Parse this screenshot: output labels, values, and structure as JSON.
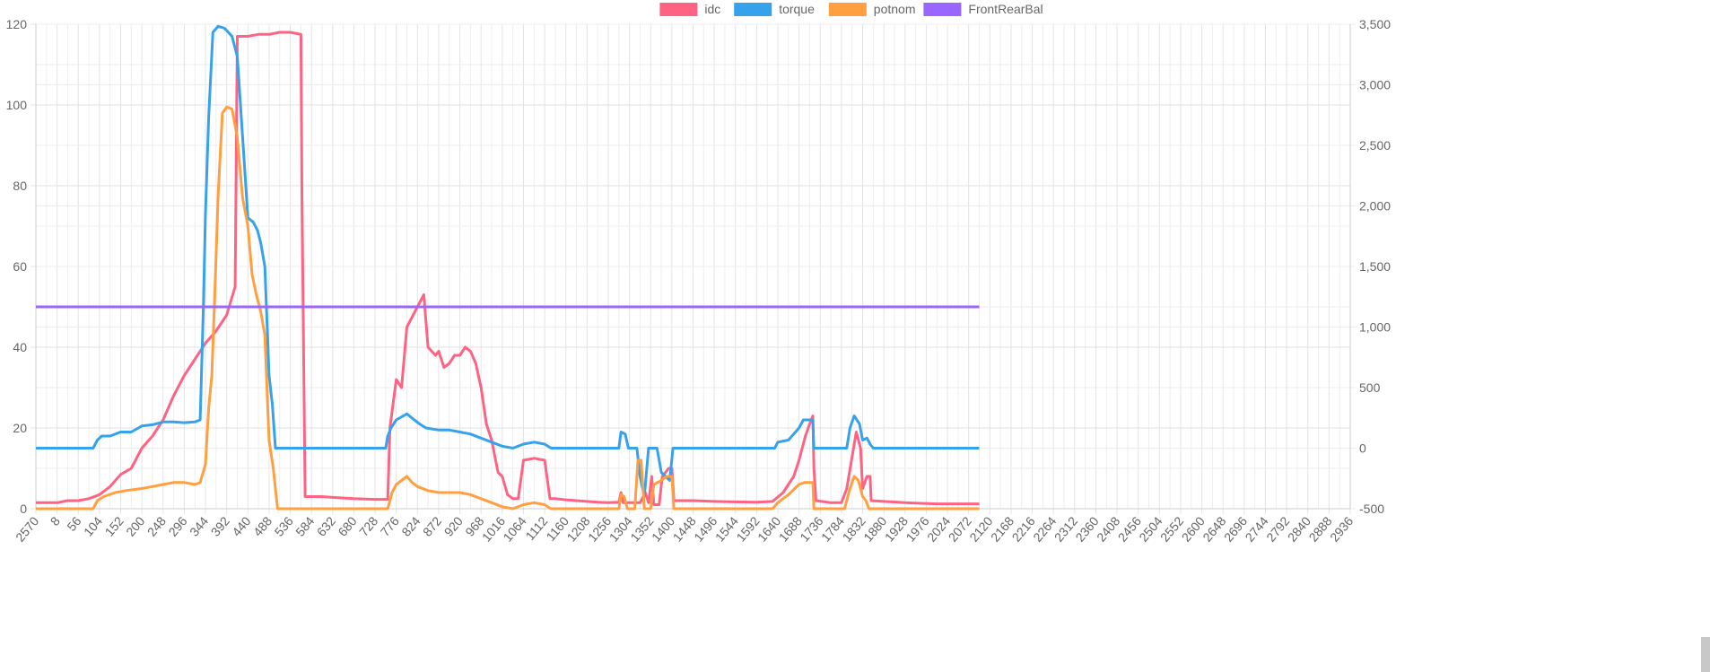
{
  "chart_data": {
    "type": "line",
    "title": "",
    "xlabel": "",
    "ylabel": "",
    "x_tick_labels": [
      "2570",
      "8",
      "56",
      "104",
      "152",
      "200",
      "248",
      "296",
      "344",
      "392",
      "440",
      "488",
      "536",
      "584",
      "632",
      "680",
      "728",
      "776",
      "824",
      "872",
      "920",
      "968",
      "1016",
      "1064",
      "1112",
      "1160",
      "1208",
      "1256",
      "1304",
      "1352",
      "1400",
      "1448",
      "1496",
      "1544",
      "1592",
      "1640",
      "1688",
      "1736",
      "1784",
      "1832",
      "1880",
      "1928",
      "1976",
      "2024",
      "2072",
      "2120",
      "2168",
      "2216",
      "2264",
      "2312",
      "2360",
      "2408",
      "2456",
      "2504",
      "2552",
      "2600",
      "2648",
      "2696",
      "2744",
      "2792",
      "2840",
      "2888",
      "2936"
    ],
    "y_left": {
      "min": 0,
      "max": 120,
      "ticks": [
        0,
        20,
        40,
        60,
        80,
        100,
        120
      ],
      "labels": [
        "0",
        "20",
        "40",
        "60",
        "80",
        "100",
        "120"
      ]
    },
    "y_right": {
      "min": -500,
      "max": 3500,
      "ticks": [
        -500,
        0,
        500,
        1000,
        1500,
        2000,
        2500,
        3000,
        3500
      ],
      "labels": [
        "-500",
        "0",
        "500",
        "1,000",
        "1,500",
        "2,000",
        "2,500",
        "3,000",
        "3,500"
      ]
    },
    "grid": true,
    "legend_position": "top",
    "series": [
      {
        "name": "idc",
        "color": "#ff6384",
        "axis": "left",
        "points": [
          [
            0,
            1.5
          ],
          [
            2,
            1.5
          ],
          [
            3,
            2
          ],
          [
            4,
            2
          ],
          [
            5,
            2.5
          ],
          [
            6,
            3.5
          ],
          [
            7,
            5.5
          ],
          [
            8,
            8.5
          ],
          [
            9,
            10
          ],
          [
            10,
            15
          ],
          [
            11,
            18
          ],
          [
            12,
            22
          ],
          [
            13,
            28
          ],
          [
            14,
            33
          ],
          [
            15,
            37
          ],
          [
            16,
            41
          ],
          [
            17,
            44
          ],
          [
            18,
            48
          ],
          [
            18.8,
            55
          ],
          [
            19,
            117
          ],
          [
            20,
            117
          ],
          [
            21,
            117.5
          ],
          [
            22,
            117.5
          ],
          [
            23,
            118
          ],
          [
            24,
            118
          ],
          [
            25,
            117.5
          ],
          [
            25.1,
            79
          ],
          [
            25.4,
            3
          ],
          [
            27,
            3
          ],
          [
            28,
            2.8
          ],
          [
            30,
            2.5
          ],
          [
            32,
            2.3
          ],
          [
            33.2,
            2.3
          ],
          [
            33.4,
            20
          ],
          [
            34,
            32
          ],
          [
            34.5,
            30
          ],
          [
            35,
            45
          ],
          [
            36,
            50
          ],
          [
            36.6,
            53
          ],
          [
            37,
            40
          ],
          [
            37.7,
            38
          ],
          [
            38,
            39
          ],
          [
            38.5,
            35
          ],
          [
            39,
            36
          ],
          [
            39.5,
            38
          ],
          [
            40,
            38
          ],
          [
            40.5,
            40
          ],
          [
            41,
            39
          ],
          [
            41.5,
            36
          ],
          [
            42,
            30
          ],
          [
            42.5,
            21
          ],
          [
            43,
            17
          ],
          [
            43.6,
            9
          ],
          [
            44,
            8
          ],
          [
            44.5,
            3.5
          ],
          [
            45,
            2.5
          ],
          [
            45.5,
            2.5
          ],
          [
            46,
            12
          ],
          [
            47,
            12.5
          ],
          [
            48,
            12
          ],
          [
            48.5,
            2.5
          ],
          [
            49,
            2.5
          ],
          [
            50,
            2.2
          ],
          [
            51,
            2
          ],
          [
            52,
            1.8
          ],
          [
            53,
            1.6
          ],
          [
            54,
            1.5
          ],
          [
            55,
            1.6
          ],
          [
            55.2,
            4
          ],
          [
            55.4,
            1.5
          ],
          [
            57,
            1.5
          ],
          [
            57.5,
            4
          ],
          [
            57.8,
            1.5
          ],
          [
            58.1,
            8
          ],
          [
            58.3,
            1
          ],
          [
            58.8,
            1
          ],
          [
            59.1,
            8
          ],
          [
            59.4,
            9
          ],
          [
            59.7,
            10
          ],
          [
            60,
            10
          ],
          [
            60.2,
            2
          ],
          [
            62,
            2
          ],
          [
            64,
            1.8
          ],
          [
            66,
            1.7
          ],
          [
            68,
            1.6
          ],
          [
            69.5,
            1.8
          ],
          [
            70.5,
            4
          ],
          [
            71.5,
            8
          ],
          [
            72,
            12
          ],
          [
            72.6,
            18
          ],
          [
            73,
            21
          ],
          [
            73.3,
            23
          ],
          [
            73.4,
            10
          ],
          [
            73.6,
            2
          ],
          [
            75,
            1.5
          ],
          [
            76,
            1.5
          ],
          [
            76.5,
            5
          ],
          [
            77.4,
            19
          ],
          [
            77.8,
            15
          ],
          [
            78,
            5
          ],
          [
            78.4,
            8
          ],
          [
            78.7,
            8
          ],
          [
            78.8,
            2
          ],
          [
            80,
            1.8
          ],
          [
            82,
            1.5
          ],
          [
            85,
            1.2
          ],
          [
            89,
            1.2
          ]
        ]
      },
      {
        "name": "torque",
        "color": "#36a2eb",
        "axis": "left",
        "points": [
          [
            0,
            15
          ],
          [
            5.4,
            15
          ],
          [
            5.8,
            17
          ],
          [
            6.2,
            18
          ],
          [
            7,
            18
          ],
          [
            8,
            19
          ],
          [
            9,
            19
          ],
          [
            10,
            20.5
          ],
          [
            11,
            20.8
          ],
          [
            12,
            21.5
          ],
          [
            13,
            21.5
          ],
          [
            14,
            21.3
          ],
          [
            15,
            21.5
          ],
          [
            15.5,
            22
          ],
          [
            15.8,
            50
          ],
          [
            16,
            73
          ],
          [
            16.3,
            97
          ],
          [
            16.7,
            118
          ],
          [
            17.2,
            119.5
          ],
          [
            17.8,
            119
          ],
          [
            18.5,
            117
          ],
          [
            19,
            112
          ],
          [
            19.6,
            88
          ],
          [
            20,
            72
          ],
          [
            20.5,
            71
          ],
          [
            20.9,
            69
          ],
          [
            21.2,
            66
          ],
          [
            21.6,
            60
          ],
          [
            22,
            33
          ],
          [
            22.3,
            26
          ],
          [
            22.6,
            15
          ],
          [
            33,
            15
          ],
          [
            33.2,
            18
          ],
          [
            33.5,
            20
          ],
          [
            34,
            22
          ],
          [
            35,
            23.5
          ],
          [
            35.7,
            22
          ],
          [
            36.2,
            21
          ],
          [
            36.8,
            20
          ],
          [
            38,
            19.5
          ],
          [
            39,
            19.5
          ],
          [
            40,
            19
          ],
          [
            41,
            18.5
          ],
          [
            42,
            17.5
          ],
          [
            43,
            16.5
          ],
          [
            44,
            15.5
          ],
          [
            45,
            15
          ],
          [
            46,
            16
          ],
          [
            47,
            16.5
          ],
          [
            48,
            16
          ],
          [
            48.6,
            15
          ],
          [
            55,
            15
          ],
          [
            55.2,
            19
          ],
          [
            55.6,
            18.5
          ],
          [
            55.9,
            15
          ],
          [
            56.7,
            15
          ],
          [
            57,
            8
          ],
          [
            57.4,
            3
          ],
          [
            57.8,
            15
          ],
          [
            58.6,
            15
          ],
          [
            59,
            9
          ],
          [
            59.4,
            8
          ],
          [
            59.8,
            7
          ],
          [
            60.1,
            15
          ],
          [
            69.7,
            15
          ],
          [
            70,
            16.5
          ],
          [
            71,
            17
          ],
          [
            72,
            20
          ],
          [
            72.4,
            22
          ],
          [
            73.3,
            22
          ],
          [
            73.4,
            15
          ],
          [
            76.5,
            15
          ],
          [
            76.8,
            20
          ],
          [
            77.2,
            23
          ],
          [
            77.7,
            21
          ],
          [
            78,
            17
          ],
          [
            78.4,
            17.5
          ],
          [
            78.7,
            16
          ],
          [
            79,
            15
          ],
          [
            89,
            15
          ]
        ]
      },
      {
        "name": "potnom",
        "color": "#ff9f40",
        "axis": "left",
        "points": [
          [
            0,
            0
          ],
          [
            5.4,
            0
          ],
          [
            5.8,
            2
          ],
          [
            6.4,
            3
          ],
          [
            7.5,
            4
          ],
          [
            8.5,
            4.5
          ],
          [
            10,
            5
          ],
          [
            11,
            5.5
          ],
          [
            12,
            6
          ],
          [
            13,
            6.5
          ],
          [
            14,
            6.5
          ],
          [
            15,
            6
          ],
          [
            15.5,
            6.5
          ],
          [
            16,
            11
          ],
          [
            16.3,
            25
          ],
          [
            16.6,
            33
          ],
          [
            16.9,
            55
          ],
          [
            17.2,
            78
          ],
          [
            17.6,
            98
          ],
          [
            18,
            99.5
          ],
          [
            18.5,
            99
          ],
          [
            19,
            92
          ],
          [
            19.5,
            77
          ],
          [
            20,
            70
          ],
          [
            20.4,
            58
          ],
          [
            20.8,
            53
          ],
          [
            21.2,
            49
          ],
          [
            21.6,
            43
          ],
          [
            22,
            17
          ],
          [
            22.4,
            10
          ],
          [
            22.8,
            0
          ],
          [
            33.2,
            0
          ],
          [
            33.6,
            4
          ],
          [
            34,
            6
          ],
          [
            34.5,
            7
          ],
          [
            35,
            8
          ],
          [
            35.5,
            6.5
          ],
          [
            36,
            5.5
          ],
          [
            37,
            4.5
          ],
          [
            38,
            4
          ],
          [
            39,
            4
          ],
          [
            40,
            4
          ],
          [
            41,
            3.5
          ],
          [
            42,
            2.5
          ],
          [
            43,
            1.5
          ],
          [
            44,
            0.5
          ],
          [
            45,
            0
          ],
          [
            46,
            1
          ],
          [
            47,
            1.5
          ],
          [
            48,
            1
          ],
          [
            48.6,
            0
          ],
          [
            55,
            0
          ],
          [
            55.2,
            3.5
          ],
          [
            55.5,
            3
          ],
          [
            55.8,
            0
          ],
          [
            56.5,
            0
          ],
          [
            56.8,
            12
          ],
          [
            57.1,
            12
          ],
          [
            57.4,
            0
          ],
          [
            58,
            0
          ],
          [
            58.3,
            6
          ],
          [
            59,
            7
          ],
          [
            59.5,
            8
          ],
          [
            60,
            8
          ],
          [
            60.2,
            0
          ],
          [
            69.5,
            0
          ],
          [
            70,
            1.5
          ],
          [
            71,
            3.5
          ],
          [
            72,
            6
          ],
          [
            72.5,
            6.5
          ],
          [
            73.3,
            6.5
          ],
          [
            73.4,
            0
          ],
          [
            76.3,
            0
          ],
          [
            76.8,
            5
          ],
          [
            77.2,
            8
          ],
          [
            77.6,
            7
          ],
          [
            78,
            3
          ],
          [
            78.3,
            2
          ],
          [
            78.6,
            0
          ],
          [
            89,
            0
          ]
        ]
      },
      {
        "name": "FrontRearBal",
        "color": "#9966ff",
        "axis": "left",
        "points": [
          [
            0,
            50
          ],
          [
            89,
            50
          ]
        ]
      }
    ]
  }
}
